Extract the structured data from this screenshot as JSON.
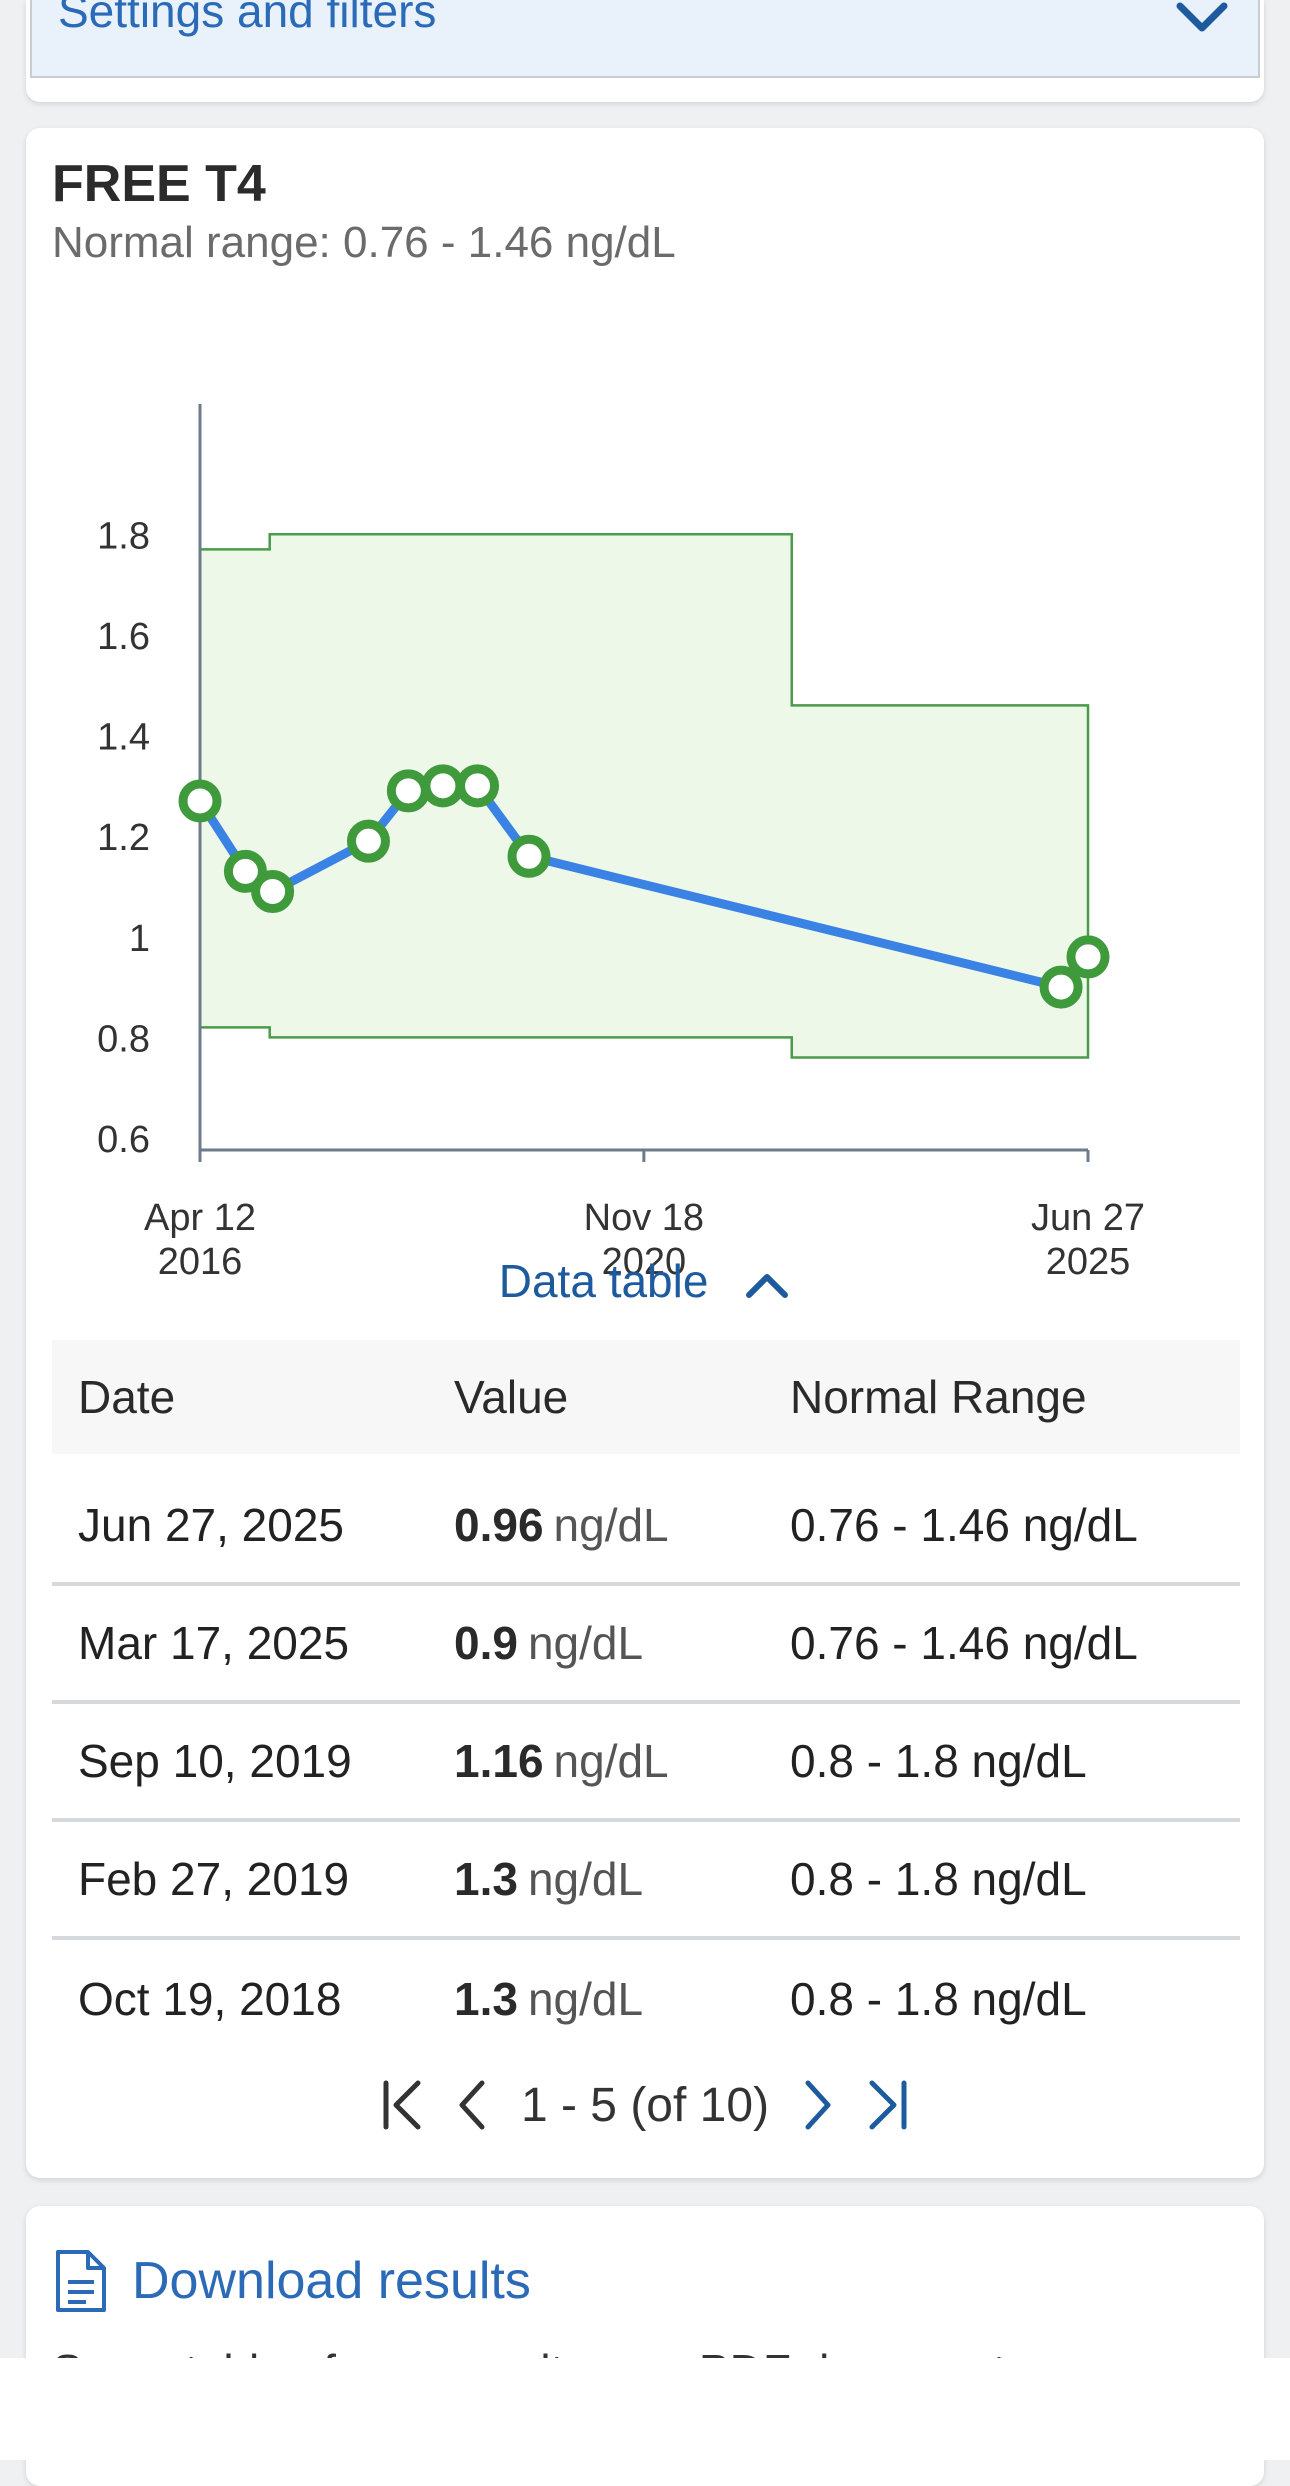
{
  "filters": {
    "label": "Settings and filters",
    "icon": "chevron-down-icon"
  },
  "card": {
    "title": "FREE T4",
    "subtitle": "Normal range: 0.76 - 1.46 ng/dL",
    "data_table_label": "Data table",
    "table": {
      "headers": [
        "Date",
        "Value",
        "Normal Range"
      ],
      "rows": [
        {
          "date": "Jun 27, 2025",
          "value": "0.96",
          "unit": "ng/dL",
          "range": "0.76 - 1.46 ng/dL"
        },
        {
          "date": "Mar 17, 2025",
          "value": "0.9",
          "unit": "ng/dL",
          "range": "0.76 - 1.46 ng/dL"
        },
        {
          "date": "Sep 10, 2019",
          "value": "1.16",
          "unit": "ng/dL",
          "range": "0.8 - 1.8 ng/dL"
        },
        {
          "date": "Feb 27, 2019",
          "value": "1.3",
          "unit": "ng/dL",
          "range": "0.8 - 1.8 ng/dL"
        },
        {
          "date": "Oct 19, 2018",
          "value": "1.3",
          "unit": "ng/dL",
          "range": "0.8 - 1.8 ng/dL"
        }
      ]
    },
    "pagination": {
      "text": "1 - 5 (of 10)"
    }
  },
  "download": {
    "label": "Download results",
    "description": "See a table of your results as a PDF document"
  },
  "colors": {
    "line": "#3a82e4",
    "point": "#3f9a3c",
    "band_fill": "#edf8e9",
    "band_stroke": "#4a9b4b",
    "axis": "#6c7a89",
    "link": "#2a6ab7"
  },
  "chart_data": {
    "type": "line",
    "title": "FREE T4",
    "ylabel": "",
    "xlabel": "",
    "ylim": [
      0.6,
      1.9
    ],
    "xlim": [
      "2016-04-12",
      "2025-06-27"
    ],
    "x_ticks": [
      {
        "date": "2016-04-12",
        "label": [
          "Apr 12",
          "2016"
        ]
      },
      {
        "date": "2020-11-18",
        "label": [
          "Nov 18",
          "2020"
        ]
      },
      {
        "date": "2025-06-27",
        "label": [
          "Jun 27",
          "2025"
        ]
      }
    ],
    "y_ticks": [
      0.6,
      0.8,
      1,
      1.2,
      1.4,
      1.6,
      1.8
    ],
    "series": [
      {
        "points": [
          {
            "x": "2016-04-12",
            "y": 1.27
          },
          {
            "x": "2016-10-01",
            "y": 1.13
          },
          {
            "x": "2017-01-12",
            "y": 1.09
          },
          {
            "x": "2018-01-10",
            "y": 1.19
          },
          {
            "x": "2018-06-10",
            "y": 1.29
          },
          {
            "x": "2018-10-19",
            "y": 1.3
          },
          {
            "x": "2019-02-27",
            "y": 1.3
          },
          {
            "x": "2019-09-10",
            "y": 1.16
          },
          {
            "x": "2025-03-17",
            "y": 0.9
          },
          {
            "x": "2025-06-27",
            "y": 0.96
          }
        ]
      }
    ],
    "normal_range_band": [
      {
        "from": "2016-04-12",
        "to": "2017-01-01",
        "low": 0.82,
        "high": 1.77
      },
      {
        "from": "2017-01-01",
        "to": "2022-06-01",
        "low": 0.8,
        "high": 1.8
      },
      {
        "from": "2022-06-01",
        "to": "2025-06-27",
        "low": 0.76,
        "high": 1.46
      }
    ]
  }
}
